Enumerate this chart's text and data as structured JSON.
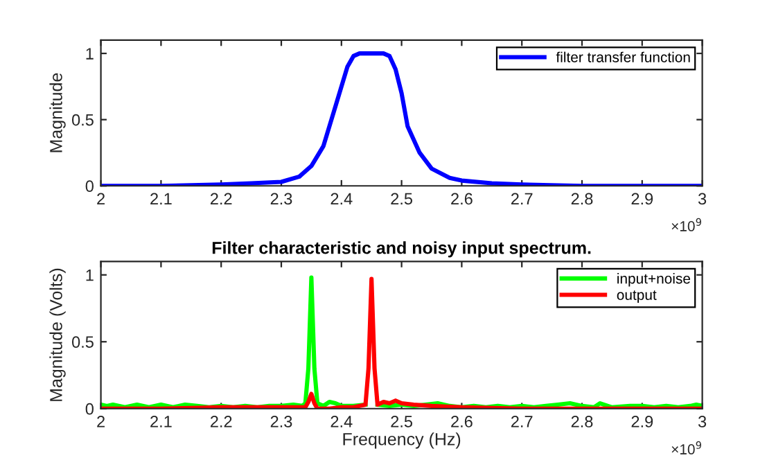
{
  "chart_data": [
    {
      "type": "line",
      "ylabel": "Magnitude",
      "legend": "top right",
      "grid": false,
      "line_style": "solid",
      "marker": "none",
      "xlim": [
        2,
        3
      ],
      "xticks": [
        2,
        2.1,
        2.2,
        2.3,
        2.4,
        2.5,
        2.6,
        2.7,
        2.8,
        2.9,
        3
      ],
      "ylim": [
        0,
        1.1
      ],
      "yticks": [
        0,
        0.5,
        1
      ],
      "annotations": [
        "×10$^{9}$"
      ],
      "series": [
        {
          "name": "filter transfer function",
          "color": "#0000ff",
          "x": [
            2.0,
            2.1,
            2.2,
            2.25,
            2.3,
            2.33,
            2.35,
            2.37,
            2.39,
            2.41,
            2.42,
            2.43,
            2.47,
            2.48,
            2.49,
            2.5,
            2.51,
            2.53,
            2.55,
            2.58,
            2.6,
            2.65,
            2.7,
            2.8,
            3.0
          ],
          "values": [
            0,
            0,
            0.01,
            0.02,
            0.03,
            0.07,
            0.15,
            0.3,
            0.6,
            0.9,
            0.98,
            1.0,
            1.0,
            0.98,
            0.88,
            0.7,
            0.45,
            0.25,
            0.13,
            0.06,
            0.04,
            0.02,
            0.01,
            0,
            0
          ]
        }
      ]
    },
    {
      "type": "line",
      "title": "Filter characteristic and noisy input spectrum.",
      "xlabel": "Frequency (Hz)",
      "ylabel": "Magnitude (Volts)",
      "legend": "top right",
      "grid": false,
      "line_style": "solid",
      "marker": "none",
      "xlim": [
        2,
        3
      ],
      "xticks": [
        2,
        2.1,
        2.2,
        2.3,
        2.4,
        2.5,
        2.6,
        2.7,
        2.8,
        2.9,
        3
      ],
      "ylim": [
        0,
        1.1
      ],
      "yticks": [
        0,
        0.5,
        1
      ],
      "annotations": [
        "×10$^{9}$"
      ],
      "series": [
        {
          "name": "input+noise",
          "color": "#00ff00",
          "x": [
            2.0,
            2.01,
            2.02,
            2.04,
            2.06,
            2.08,
            2.1,
            2.12,
            2.14,
            2.16,
            2.18,
            2.2,
            2.22,
            2.24,
            2.26,
            2.28,
            2.3,
            2.32,
            2.335,
            2.34,
            2.345,
            2.35,
            2.355,
            2.36,
            2.37,
            2.38,
            2.39,
            2.4,
            2.42,
            2.44,
            2.445,
            2.45,
            2.455,
            2.46,
            2.48,
            2.5,
            2.52,
            2.54,
            2.56,
            2.58,
            2.6,
            2.62,
            2.64,
            2.66,
            2.68,
            2.7,
            2.72,
            2.74,
            2.76,
            2.78,
            2.8,
            2.82,
            2.83,
            2.85,
            2.88,
            2.9,
            2.92,
            2.94,
            2.96,
            2.98,
            2.99,
            3.0
          ],
          "values": [
            0.03,
            0.02,
            0.03,
            0.01,
            0.03,
            0.01,
            0.03,
            0.01,
            0.03,
            0.02,
            0.01,
            0.02,
            0.01,
            0.02,
            0.01,
            0.02,
            0.02,
            0.03,
            0.02,
            0.04,
            0.3,
            0.98,
            0.3,
            0.04,
            0.02,
            0.05,
            0.04,
            0.02,
            0.02,
            0.03,
            null,
            null,
            null,
            0.03,
            0.02,
            0.03,
            0.02,
            0.03,
            0.04,
            0.02,
            0.01,
            0.02,
            0.01,
            0.02,
            0.01,
            0.02,
            0.01,
            0.02,
            0.03,
            0.04,
            0.02,
            0.01,
            0.04,
            0.01,
            0.02,
            0.02,
            0.01,
            0.02,
            0.01,
            0.02,
            0.03,
            0.02
          ]
        },
        {
          "name": "output",
          "color": "#ff0000",
          "x": [
            2.0,
            2.1,
            2.2,
            2.3,
            2.34,
            2.345,
            2.35,
            2.355,
            2.36,
            2.38,
            2.4,
            2.42,
            2.43,
            2.44,
            2.445,
            2.45,
            2.455,
            2.46,
            2.47,
            2.48,
            2.49,
            2.5,
            2.52,
            2.55,
            2.6,
            2.7,
            2.8,
            2.9,
            3.0
          ],
          "values": [
            0,
            0,
            0.01,
            0.01,
            0.01,
            0.05,
            0.11,
            0.04,
            0.0,
            0,
            0.01,
            0.01,
            0.02,
            0.03,
            0.3,
            0.97,
            0.3,
            0.03,
            0.05,
            0.04,
            0.06,
            0.04,
            0.03,
            0.02,
            0.01,
            0,
            0,
            0,
            0
          ]
        }
      ]
    }
  ]
}
